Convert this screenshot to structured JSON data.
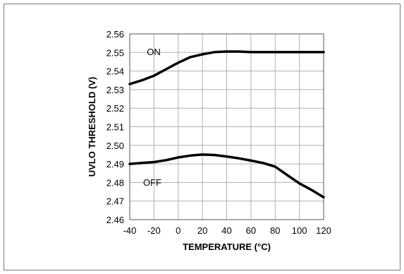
{
  "chart_data": {
    "type": "line",
    "title": "",
    "xlabel": "TEMPERATURE (°C)",
    "ylabel": "UVLO THRESHOLD (V)",
    "xlim": [
      -40,
      120
    ],
    "ylim": [
      2.46,
      2.56
    ],
    "x_ticks": [
      -40,
      -20,
      0,
      20,
      40,
      60,
      80,
      100,
      120
    ],
    "y_ticks": [
      "2.46",
      "2.47",
      "2.48",
      "2.49",
      "2.50",
      "2.51",
      "2.52",
      "2.53",
      "2.54",
      "2.55",
      "2.56"
    ],
    "grid": true,
    "legend": "none",
    "line_color": "#000000",
    "grid_color": "#b0b0b0",
    "series": [
      {
        "name": "ON",
        "x": [
          -40,
          -30,
          -20,
          -10,
          0,
          10,
          20,
          30,
          40,
          50,
          60,
          70,
          80,
          90,
          100,
          110,
          120
        ],
        "y": [
          2.533,
          2.535,
          2.5375,
          2.541,
          2.5445,
          2.5475,
          2.549,
          2.5502,
          2.5505,
          2.5505,
          2.5502,
          2.5502,
          2.5502,
          2.5502,
          2.5502,
          2.5502,
          2.5502
        ]
      },
      {
        "name": "OFF",
        "x": [
          -40,
          -30,
          -20,
          -10,
          0,
          10,
          20,
          30,
          40,
          50,
          60,
          70,
          80,
          90,
          100,
          110,
          120
        ],
        "y": [
          2.49,
          2.4905,
          2.491,
          2.492,
          2.4935,
          2.4945,
          2.495,
          2.4948,
          2.494,
          2.493,
          2.4918,
          2.4905,
          2.4885,
          2.484,
          2.4795,
          2.476,
          2.472
        ]
      }
    ]
  }
}
